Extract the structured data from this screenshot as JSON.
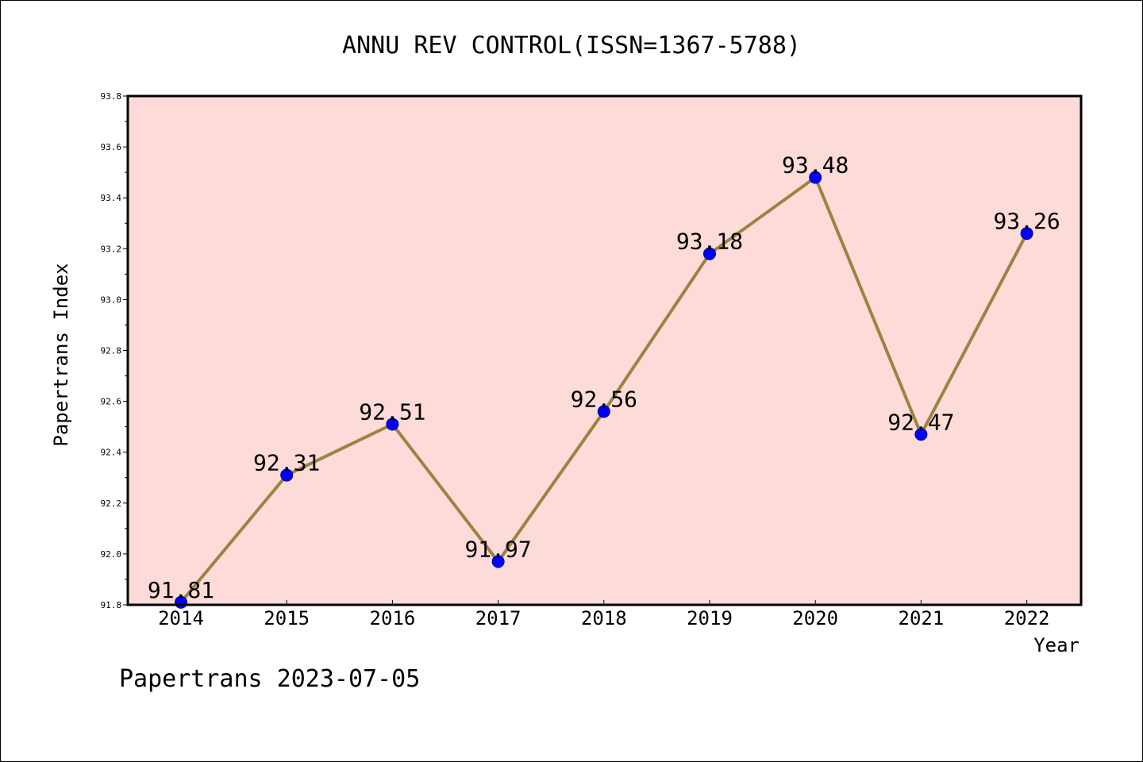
{
  "chart_data": {
    "type": "line",
    "title": "ANNU REV CONTROL(ISSN=1367-5788)",
    "xlabel": "Year",
    "ylabel": "Papertrans Index",
    "categories": [
      "2014",
      "2015",
      "2016",
      "2017",
      "2018",
      "2019",
      "2020",
      "2021",
      "2022"
    ],
    "series": [
      {
        "values": [
          91.81,
          92.31,
          92.51,
          91.97,
          92.56,
          93.18,
          93.48,
          92.47,
          93.26
        ],
        "labels": [
          "91.81",
          "92.31",
          "92.51",
          "91.97",
          "92.56",
          "93.18",
          "93.48",
          "92.47",
          "93.26"
        ]
      }
    ],
    "ylim": [
      91.8,
      93.8
    ],
    "yticks": [
      "91.8",
      "92.0",
      "92.2",
      "92.4",
      "92.6",
      "92.8",
      "93.0",
      "93.2",
      "93.4",
      "93.6",
      "93.8"
    ],
    "grid": false,
    "colors": {
      "plot_background": "#fddbd8",
      "line": "#9b8443",
      "marker": "#0000ff",
      "marker_edge": "#00008b"
    }
  },
  "footer": "Papertrans 2023-07-05"
}
